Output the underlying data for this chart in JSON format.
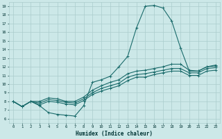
{
  "xlabel": "Humidex (Indice chaleur)",
  "bg_color": "#cce8e8",
  "grid_color": "#aacccc",
  "line_color": "#1a6b6b",
  "xlim": [
    -0.5,
    23.5
  ],
  "ylim": [
    5.5,
    19.5
  ],
  "xticks": [
    0,
    1,
    2,
    3,
    4,
    5,
    6,
    7,
    8,
    9,
    10,
    11,
    12,
    13,
    14,
    15,
    16,
    17,
    18,
    19,
    20,
    21,
    22,
    23
  ],
  "yticks": [
    6,
    7,
    8,
    9,
    10,
    11,
    12,
    13,
    14,
    15,
    16,
    17,
    18,
    19
  ],
  "curve1_x": [
    0,
    1,
    2,
    3,
    4,
    5,
    6,
    7,
    8,
    9,
    10,
    11,
    12,
    13,
    14,
    15,
    16,
    17,
    18,
    19,
    20,
    21,
    22,
    23
  ],
  "curve1_y": [
    8.0,
    7.4,
    8.0,
    7.5,
    6.7,
    6.5,
    6.4,
    6.3,
    7.5,
    10.2,
    10.5,
    10.9,
    12.0,
    13.2,
    16.5,
    19.0,
    19.1,
    18.8,
    17.3,
    14.2,
    11.5,
    11.5,
    12.0,
    12.1
  ],
  "curve2_x": [
    0,
    1,
    2,
    3,
    4,
    5,
    6,
    7,
    8,
    9,
    10,
    11,
    12,
    13,
    14,
    15,
    16,
    17,
    18,
    19,
    20,
    21,
    22,
    23
  ],
  "curve2_y": [
    8.0,
    7.4,
    8.0,
    8.0,
    8.4,
    8.3,
    8.0,
    8.0,
    8.5,
    9.3,
    9.8,
    10.2,
    10.5,
    11.2,
    11.5,
    11.6,
    11.8,
    12.0,
    12.3,
    12.3,
    11.6,
    11.5,
    12.0,
    12.2
  ],
  "curve3_x": [
    0,
    1,
    2,
    3,
    4,
    5,
    6,
    7,
    8,
    9,
    10,
    11,
    12,
    13,
    14,
    15,
    16,
    17,
    18,
    19,
    20,
    21,
    22,
    23
  ],
  "curve3_y": [
    8.0,
    7.4,
    8.0,
    7.8,
    8.2,
    8.1,
    7.9,
    7.8,
    8.3,
    9.0,
    9.5,
    9.8,
    10.1,
    10.8,
    11.1,
    11.2,
    11.4,
    11.6,
    11.8,
    11.8,
    11.3,
    11.3,
    11.8,
    11.9
  ],
  "curve4_x": [
    0,
    1,
    2,
    3,
    4,
    5,
    6,
    7,
    8,
    9,
    10,
    11,
    12,
    13,
    14,
    15,
    16,
    17,
    18,
    19,
    20,
    21,
    22,
    23
  ],
  "curve4_y": [
    8.0,
    7.4,
    8.0,
    7.6,
    8.0,
    7.9,
    7.7,
    7.6,
    8.1,
    8.8,
    9.2,
    9.5,
    9.8,
    10.4,
    10.8,
    10.8,
    11.1,
    11.3,
    11.5,
    11.5,
    11.0,
    11.0,
    11.5,
    11.6
  ]
}
